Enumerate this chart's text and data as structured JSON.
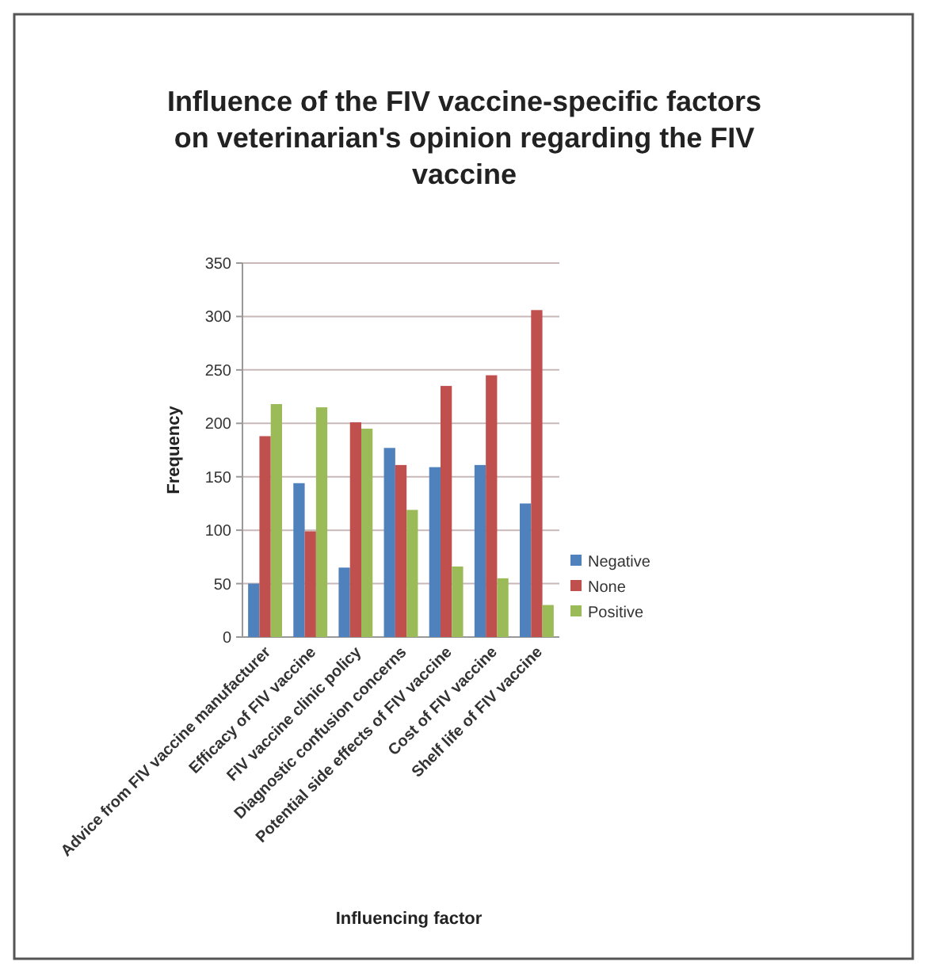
{
  "chart_data": {
    "type": "bar",
    "title": "Influence of the FIV vaccine-specific factors on veterinarian's opinion regarding the FIV vaccine",
    "xlabel": "Influencing factor",
    "ylabel": "Frequency",
    "categories": [
      "Advice from FIV vaccine manufacturer",
      "Efficacy of FIV vaccine",
      "FIV vaccine clinic policy",
      "Diagnostic confusion concerns",
      "Potential side effects of FIV vaccine",
      "Cost of FIV vaccine",
      "Shelf life of FIV vaccine"
    ],
    "series": [
      {
        "name": "Negative",
        "color": "#4f81bd",
        "values": [
          50,
          144,
          65,
          177,
          159,
          161,
          125
        ]
      },
      {
        "name": "None",
        "color": "#c0504d",
        "values": [
          188,
          99,
          201,
          161,
          235,
          245,
          306
        ]
      },
      {
        "name": "Positive",
        "color": "#9bbb59",
        "values": [
          218,
          215,
          195,
          119,
          66,
          55,
          30
        ]
      }
    ],
    "ylim": [
      0,
      350
    ],
    "yticks": [
      0,
      50,
      100,
      150,
      200,
      250,
      300,
      350
    ],
    "grid": "y",
    "legend": "right"
  }
}
